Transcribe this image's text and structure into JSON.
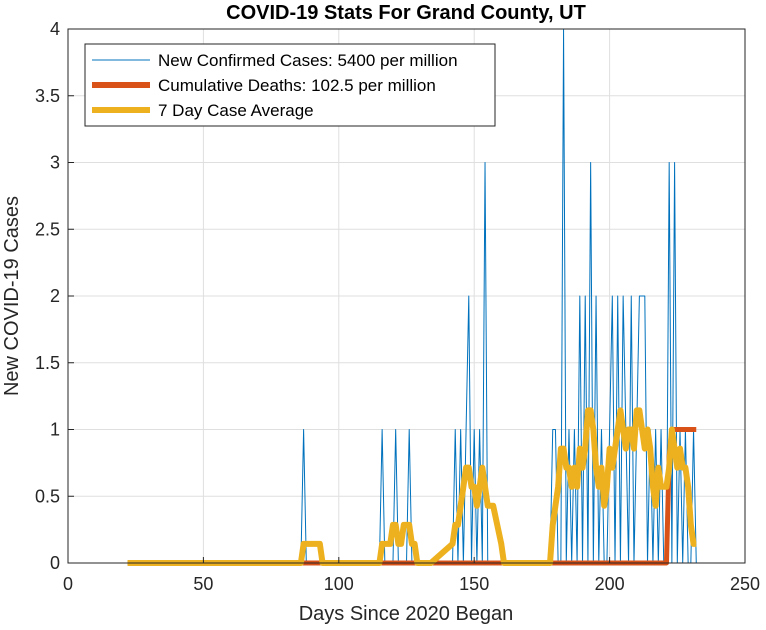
{
  "chart_data": {
    "type": "line",
    "title": "COVID-19 Stats For Grand County, UT",
    "xlabel": "Days Since 2020 Began",
    "ylabel": "New COVID-19 Cases",
    "xlim": [
      0,
      250
    ],
    "ylim": [
      0,
      4
    ],
    "xticks": [
      "0",
      "50",
      "100",
      "150",
      "200",
      "250"
    ],
    "yticks": [
      "0",
      "0.5",
      "1",
      "1.5",
      "2",
      "2.5",
      "3",
      "3.5",
      "4"
    ],
    "grid": true,
    "legend_position": "top-left",
    "series": [
      {
        "name": "New Confirmed Cases: 5400 per million",
        "color": "#0072BD",
        "x": [
          22,
          86,
          87,
          88,
          115,
          116,
          117,
          120,
          121,
          122,
          125,
          126,
          127,
          142,
          143,
          144,
          145,
          146,
          147,
          148,
          149,
          150,
          151,
          152,
          153,
          154,
          155,
          156,
          178,
          179,
          180,
          181,
          182,
          183,
          184,
          185,
          186,
          187,
          188,
          189,
          190,
          191,
          192,
          193,
          194,
          195,
          196,
          197,
          198,
          199,
          200,
          201,
          202,
          203,
          204,
          205,
          206,
          207,
          208,
          209,
          210,
          211,
          212,
          213,
          214,
          215,
          216,
          217,
          218,
          219,
          220,
          221,
          222,
          223,
          224,
          225,
          226,
          227,
          228,
          229,
          230,
          231,
          232
        ],
        "y": [
          0,
          0,
          1,
          0,
          0,
          1,
          0,
          0,
          1,
          0,
          0,
          1,
          0,
          0,
          1,
          0,
          1,
          0,
          1,
          2,
          0,
          1,
          0,
          1,
          0,
          3,
          0,
          0,
          0,
          1,
          1,
          0,
          0,
          4,
          0,
          1,
          0,
          1,
          0,
          2,
          0,
          2,
          0,
          3,
          0,
          2,
          0,
          1,
          0,
          0,
          1,
          2,
          0,
          2,
          0,
          2,
          1,
          0,
          2,
          0,
          1,
          2,
          2,
          2,
          0,
          1,
          0,
          1,
          0,
          1,
          0,
          0,
          3,
          0,
          3,
          0,
          1,
          0,
          1,
          0,
          0,
          1,
          0
        ]
      },
      {
        "name": "Cumulative Deaths: 102.5 per million",
        "color": "#D95319",
        "x": [
          22,
          221,
          222,
          223,
          224,
          225,
          226,
          227,
          228,
          229,
          230,
          231,
          232
        ],
        "y": [
          0,
          0,
          0.8,
          1,
          1,
          1,
          1,
          1,
          1,
          1,
          1,
          1,
          1
        ]
      },
      {
        "name": "7 Day Case Average",
        "color": "#EDB120",
        "x": [
          22,
          86,
          87,
          88,
          93,
          94,
          115,
          116,
          117,
          119,
          120,
          121,
          122,
          123,
          124,
          125,
          126,
          127,
          128,
          129,
          133,
          134,
          142,
          143,
          144,
          145,
          146,
          147,
          148,
          149,
          150,
          151,
          152,
          153,
          154,
          155,
          156,
          157,
          160,
          161,
          178,
          179,
          180,
          181,
          182,
          183,
          184,
          185,
          186,
          187,
          188,
          189,
          190,
          191,
          192,
          193,
          194,
          195,
          196,
          197,
          198,
          199,
          200,
          201,
          202,
          203,
          204,
          205,
          206,
          207,
          208,
          209,
          210,
          211,
          212,
          213,
          214,
          215,
          216,
          217,
          218,
          219,
          220,
          221,
          222,
          223,
          224,
          225,
          226,
          227,
          228,
          229,
          230,
          231,
          232
        ],
        "y": [
          0,
          0,
          0.143,
          0.143,
          0.143,
          0,
          0,
          0.143,
          0.143,
          0.143,
          0.286,
          0.286,
          0.143,
          0.143,
          0.286,
          0.286,
          0.286,
          0.143,
          0.143,
          0,
          0,
          0,
          0.143,
          0.286,
          0.286,
          0.429,
          0.571,
          0.714,
          0.714,
          0.571,
          0.571,
          0.429,
          0.571,
          0.714,
          0.571,
          0.429,
          0.429,
          0.429,
          0.143,
          0,
          0,
          0.286,
          0.429,
          0.571,
          0.857,
          0.857,
          0.714,
          0.714,
          0.571,
          0.714,
          0.571,
          0.857,
          0.714,
          0.857,
          1.143,
          1.143,
          1.0,
          0.714,
          0.571,
          0.714,
          0.429,
          0.571,
          0.857,
          0.714,
          0.857,
          1.0,
          1.143,
          1.0,
          0.857,
          1.0,
          1.0,
          0.857,
          1.143,
          1.143,
          1.0,
          0.857,
          1.0,
          0.857,
          0.571,
          0.429,
          0.714,
          0.571,
          0.571,
          0.571,
          0.714,
          1.0,
          0.857,
          0.714,
          0.857,
          0.714,
          0.714,
          0.571,
          0.286,
          0.143,
          0.143
        ]
      }
    ]
  }
}
